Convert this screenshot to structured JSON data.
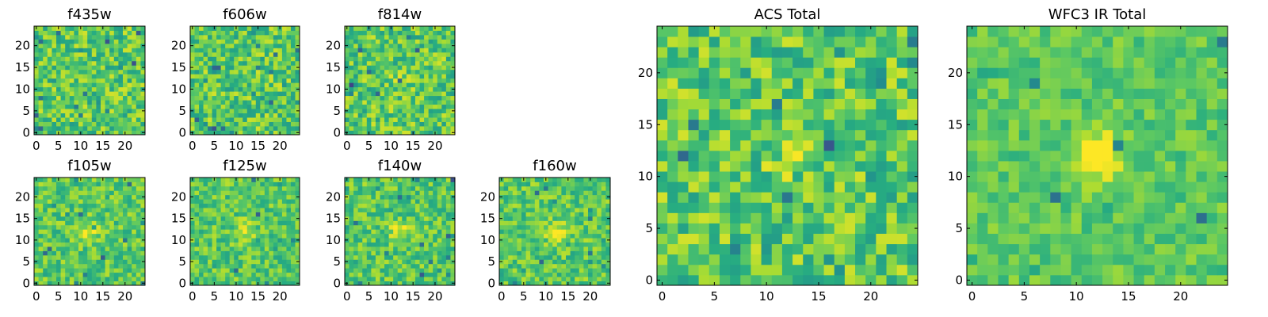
{
  "chart_data": [
    {
      "type": "heatmap",
      "title": "f435w",
      "seed": 11,
      "blob": 0.0,
      "noise": 1.0,
      "grid": [
        25,
        25
      ],
      "xticks": [
        "0",
        "5",
        "10",
        "15",
        "20"
      ],
      "yticks": [
        "0",
        "5",
        "10",
        "15",
        "20"
      ],
      "xlim": [
        -0.5,
        24.5
      ],
      "ylim": [
        -0.5,
        24.5
      ]
    },
    {
      "type": "heatmap",
      "title": "f606w",
      "seed": 23,
      "blob": 0.05,
      "noise": 1.0,
      "grid": [
        25,
        25
      ],
      "xticks": [
        "0",
        "5",
        "10",
        "15",
        "20"
      ],
      "yticks": [
        "0",
        "5",
        "10",
        "15",
        "20"
      ],
      "xlim": [
        -0.5,
        24.5
      ],
      "ylim": [
        -0.5,
        24.5
      ]
    },
    {
      "type": "heatmap",
      "title": "f814w",
      "seed": 37,
      "blob": 0.25,
      "noise": 1.0,
      "grid": [
        25,
        25
      ],
      "xticks": [
        "0",
        "5",
        "10",
        "15",
        "20"
      ],
      "yticks": [
        "0",
        "5",
        "10",
        "15",
        "20"
      ],
      "xlim": [
        -0.5,
        24.5
      ],
      "ylim": [
        -0.5,
        24.5
      ]
    },
    {
      "type": "heatmap",
      "title": "f105w",
      "seed": 41,
      "blob": 0.55,
      "noise": 0.8,
      "grid": [
        25,
        25
      ],
      "xticks": [
        "0",
        "5",
        "10",
        "15",
        "20"
      ],
      "yticks": [
        "0",
        "5",
        "10",
        "15",
        "20"
      ],
      "xlim": [
        -0.5,
        24.5
      ],
      "ylim": [
        -0.5,
        24.5
      ]
    },
    {
      "type": "heatmap",
      "title": "f125w",
      "seed": 53,
      "blob": 0.55,
      "noise": 0.8,
      "grid": [
        25,
        25
      ],
      "xticks": [
        "0",
        "5",
        "10",
        "15",
        "20"
      ],
      "yticks": [
        "0",
        "5",
        "10",
        "15",
        "20"
      ],
      "xlim": [
        -0.5,
        24.5
      ],
      "ylim": [
        -0.5,
        24.5
      ]
    },
    {
      "type": "heatmap",
      "title": "f140w",
      "seed": 67,
      "blob": 0.55,
      "noise": 0.8,
      "grid": [
        25,
        25
      ],
      "xticks": [
        "0",
        "5",
        "10",
        "15",
        "20"
      ],
      "yticks": [
        "0",
        "5",
        "10",
        "15",
        "20"
      ],
      "xlim": [
        -0.5,
        24.5
      ],
      "ylim": [
        -0.5,
        24.5
      ]
    },
    {
      "type": "heatmap",
      "title": "f160w",
      "seed": 79,
      "blob": 0.65,
      "noise": 0.8,
      "grid": [
        25,
        25
      ],
      "xticks": [
        "0",
        "5",
        "10",
        "15",
        "20"
      ],
      "yticks": [
        "0",
        "5",
        "10",
        "15",
        "20"
      ],
      "xlim": [
        -0.5,
        24.5
      ],
      "ylim": [
        -0.5,
        24.5
      ]
    },
    {
      "type": "heatmap",
      "title": "ACS Total",
      "seed": 97,
      "blob": 0.3,
      "noise": 1.0,
      "grid": [
        25,
        25
      ],
      "xticks": [
        "0",
        "5",
        "10",
        "15",
        "20"
      ],
      "yticks": [
        "0",
        "5",
        "10",
        "15",
        "20"
      ],
      "xlim": [
        -0.5,
        24.5
      ],
      "ylim": [
        -0.5,
        24.5
      ]
    },
    {
      "type": "heatmap",
      "title": "WFC3 IR Total",
      "seed": 113,
      "blob": 1.0,
      "noise": 0.55,
      "grid": [
        25,
        25
      ],
      "xticks": [
        "0",
        "5",
        "10",
        "15",
        "20"
      ],
      "yticks": [
        "0",
        "5",
        "10",
        "15",
        "20"
      ],
      "xlim": [
        -0.5,
        24.5
      ],
      "ylim": [
        -0.5,
        24.5
      ]
    }
  ],
  "colors": {
    "viridis": [
      "#440154",
      "#472c7a",
      "#3b518b",
      "#2c718e",
      "#21908d",
      "#27ad81",
      "#5cc863",
      "#aadc32",
      "#fde725"
    ]
  }
}
